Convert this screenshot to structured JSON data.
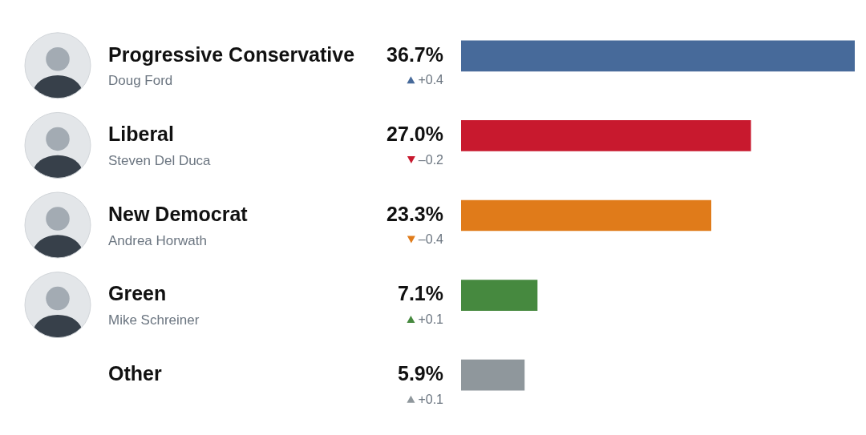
{
  "chart_data": {
    "type": "bar",
    "orientation": "horizontal",
    "categories": [
      "Progressive Conservative",
      "Liberal",
      "New Democrat",
      "Green",
      "Other"
    ],
    "leaders": [
      "Doug Ford",
      "Steven Del Duca",
      "Andrea Horwath",
      "Mike Schreiner",
      null
    ],
    "values": [
      36.7,
      27.0,
      23.3,
      7.1,
      5.9
    ],
    "value_labels": [
      "36.7%",
      "27.0%",
      "23.3%",
      "7.1%",
      "5.9%"
    ],
    "changes": [
      0.4,
      -0.2,
      -0.4,
      0.1,
      0.1
    ],
    "change_labels": [
      "+0.4",
      "–0.2",
      "–0.4",
      "+0.1",
      "+0.1"
    ],
    "colors": [
      "#476a9a",
      "#c8192e",
      "#e07b1a",
      "#46893f",
      "#8f979c"
    ],
    "xlim": [
      0,
      36.7
    ],
    "data_labels": true,
    "tick_labels": false,
    "grid": false
  }
}
